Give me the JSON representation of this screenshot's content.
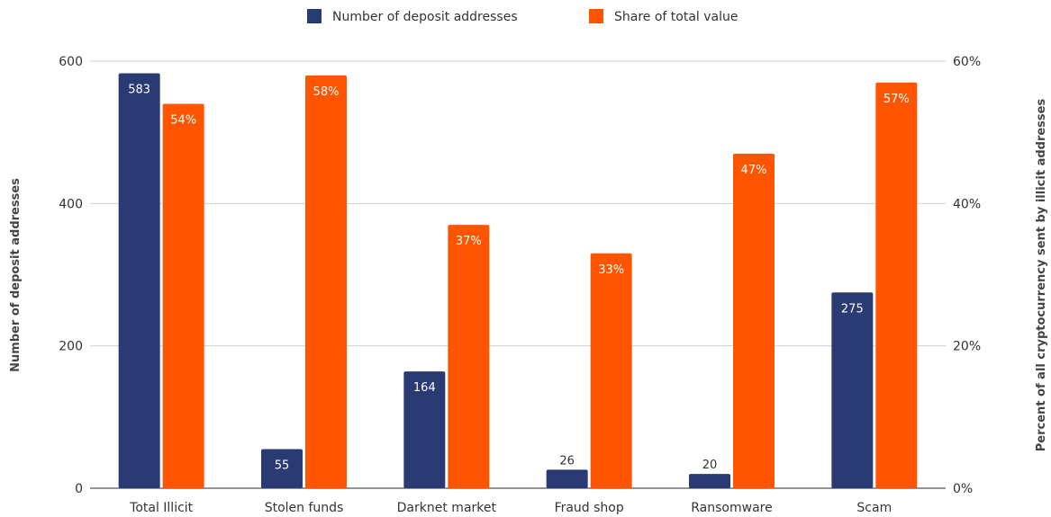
{
  "chart_data": {
    "type": "bar",
    "categories": [
      "Total Illicit",
      "Stolen funds",
      "Darknet market",
      "Fraud shop",
      "Ransomware",
      "Scam"
    ],
    "series": [
      {
        "name": "Number of deposit addresses",
        "axis": "left",
        "values": [
          583,
          55,
          164,
          26,
          20,
          275
        ],
        "labels": [
          "583",
          "55",
          "164",
          "26",
          "20",
          "275"
        ],
        "color": "#2a3a72"
      },
      {
        "name": "Share of total value",
        "axis": "right",
        "values": [
          54,
          58,
          37,
          33,
          47,
          57
        ],
        "labels": [
          "54%",
          "58%",
          "37%",
          "33%",
          "47%",
          "57%"
        ],
        "color": "#ff5500"
      }
    ],
    "ylabel": "Number of deposit addresses",
    "y2label": "Percent of all cryptocurrency sent by illicit addresses",
    "ylim": [
      0,
      600
    ],
    "y2lim": [
      0,
      60
    ],
    "yticks": [
      "0",
      "200",
      "400",
      "600"
    ],
    "y2ticks": [
      "0%",
      "20%",
      "40%",
      "60%"
    ],
    "grid": true,
    "legend_position": "top-center"
  }
}
